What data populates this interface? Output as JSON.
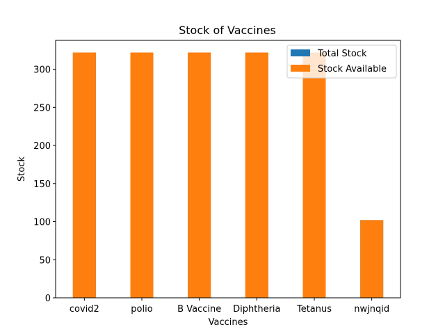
{
  "chart_data": {
    "type": "bar",
    "title": "Stock of Vaccines",
    "xlabel": "Vaccines",
    "ylabel": "Stock",
    "categories": [
      "covid2",
      "polio",
      "B Vaccine",
      "Diphtheria",
      "Tetanus",
      "nwjnqid"
    ],
    "series": [
      {
        "name": "Total Stock",
        "color": "#1f77b4",
        "values": [
          322,
          322,
          322,
          322,
          322,
          102
        ]
      },
      {
        "name": "Stock Available",
        "color": "#ff7f0e",
        "values": [
          322,
          322,
          322,
          322,
          322,
          102
        ]
      }
    ],
    "ylim": [
      0,
      338
    ],
    "yticks": [
      0,
      50,
      100,
      150,
      200,
      250,
      300
    ],
    "grid": false,
    "legend_position": "top-right"
  }
}
